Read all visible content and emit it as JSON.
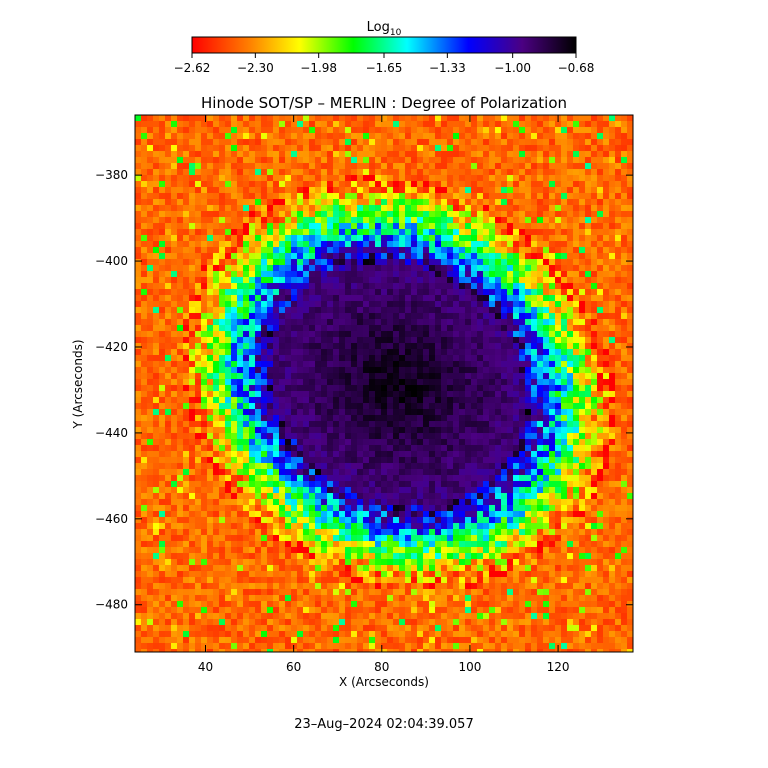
{
  "chart_data": {
    "type": "heatmap",
    "title": "Hinode SOT/SP – MERLIN : Degree of Polarization",
    "xlabel": "X (Arcseconds)",
    "ylabel": "Y (Arcseconds)",
    "xlim": [
      24,
      137
    ],
    "ylim": [
      -491,
      -366
    ],
    "x_ticks": [
      40,
      60,
      80,
      100,
      120
    ],
    "y_ticks": [
      -380,
      -400,
      -420,
      -440,
      -460,
      -480
    ],
    "colorbar": {
      "label": "Log",
      "label_sub": "10",
      "range": [
        -2.62,
        -0.68
      ],
      "tick_values": [
        -2.62,
        -2.3,
        -1.98,
        -1.65,
        -1.33,
        -1.0,
        -0.68
      ],
      "tick_labels": [
        "−2.62",
        "−2.30",
        "−1.98",
        "−1.65",
        "−1.33",
        "−1.00",
        "−0.68"
      ],
      "colors": [
        "#ff0000",
        "#ff7f00",
        "#ffff00",
        "#00ff00",
        "#00ffff",
        "#0000ff",
        "#4b0082",
        "#000000"
      ]
    },
    "features": [
      {
        "kind": "sunspot",
        "center": [
          83,
          -428
        ],
        "radius_x": 30,
        "radius_y": 27,
        "peak": -0.72,
        "background": -2.5
      }
    ],
    "legend": "none",
    "grid": false
  },
  "footer": {
    "timestamp": "23–Aug–2024 02:04:39.057"
  }
}
